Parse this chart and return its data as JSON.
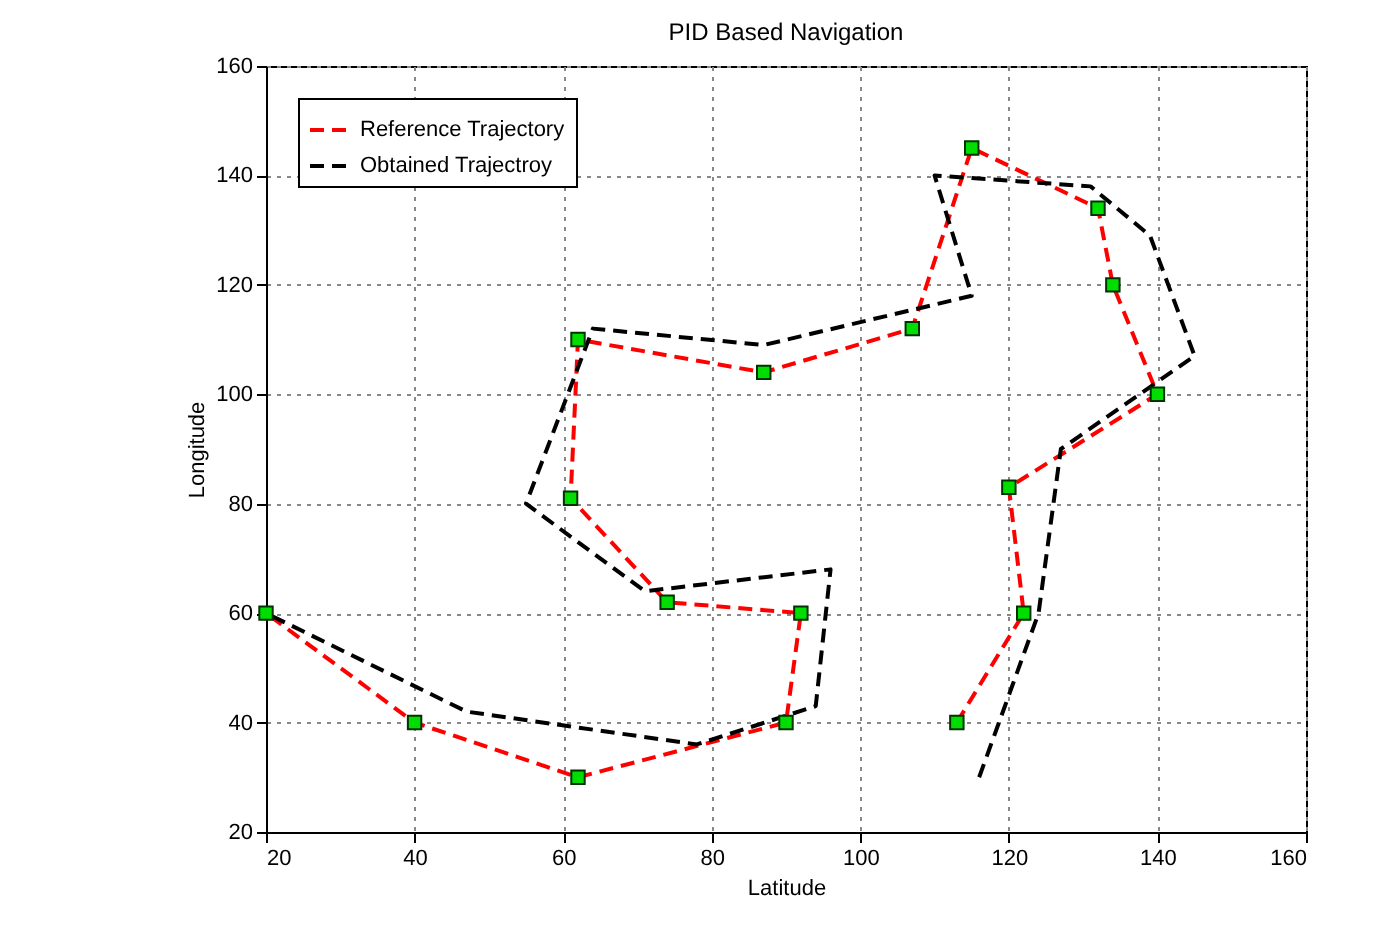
{
  "chart_data": {
    "type": "line",
    "title": "PID Based Navigation",
    "xlabel": "Latitude",
    "ylabel": "Longitude",
    "xlim": [
      20,
      160
    ],
    "ylim": [
      20,
      160
    ],
    "xticks": [
      20,
      40,
      60,
      80,
      100,
      120,
      140,
      160
    ],
    "yticks": [
      20,
      40,
      60,
      80,
      100,
      120,
      140,
      160
    ],
    "grid": true,
    "legend": "top left",
    "line_style": "dashed",
    "series": [
      {
        "name": "Reference Trajectory",
        "color": "#ff0000",
        "marker": "square",
        "x": [
          113,
          122,
          120,
          140,
          134,
          132,
          115,
          107,
          87,
          62,
          61,
          74,
          92,
          90,
          62,
          40,
          20
        ],
        "values": [
          40,
          60,
          83,
          100,
          120,
          134,
          145,
          112,
          104,
          110,
          81,
          62,
          60,
          40,
          30,
          40,
          60
        ]
      },
      {
        "name": "Obtained Trajectroy",
        "color": "#000000",
        "marker": "none",
        "x": [
          116,
          124,
          127,
          145,
          139,
          131,
          110,
          115,
          87,
          64,
          55,
          71,
          96,
          94,
          78,
          47,
          20
        ],
        "values": [
          30,
          60,
          90,
          107,
          129,
          138,
          140,
          118,
          109,
          112,
          80,
          64,
          68,
          43,
          36,
          42,
          60
        ]
      }
    ]
  }
}
